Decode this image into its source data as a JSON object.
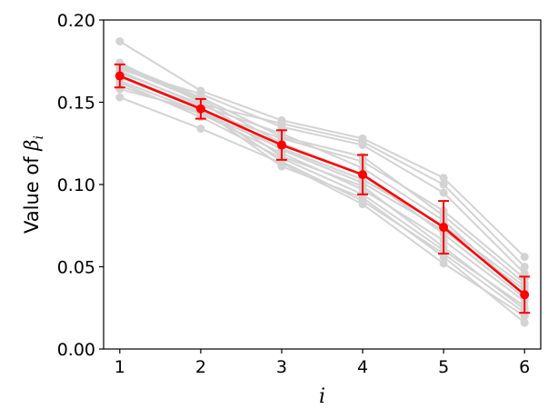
{
  "chart_data": {
    "type": "line",
    "xlabel": "i",
    "ylabel_prefix": "Value of ",
    "ylabel_symbol": "β",
    "ylabel_subscript": "i",
    "x": [
      1,
      2,
      3,
      4,
      5,
      6
    ],
    "x_ticks": [
      "1",
      "2",
      "3",
      "4",
      "5",
      "6"
    ],
    "y_ticks": [
      "0.00",
      "0.05",
      "0.10",
      "0.15",
      "0.20"
    ],
    "xlim": [
      0.8,
      6.2
    ],
    "ylim": [
      0.0,
      0.2
    ],
    "grid": false,
    "background_series_color": "#d3d3d3",
    "mean_series_color": "#ff0000",
    "background_series": [
      {
        "values": [
          0.187,
          0.157,
          0.139,
          0.128,
          0.104,
          0.056
        ]
      },
      {
        "values": [
          0.153,
          0.134,
          0.113,
          0.088,
          0.052,
          0.02
        ]
      },
      {
        "values": [
          0.174,
          0.15,
          0.121,
          0.101,
          0.072,
          0.036
        ]
      },
      {
        "values": [
          0.158,
          0.145,
          0.128,
          0.114,
          0.084,
          0.043
        ]
      },
      {
        "values": [
          0.17,
          0.155,
          0.135,
          0.124,
          0.095,
          0.046
        ]
      },
      {
        "values": [
          0.162,
          0.141,
          0.116,
          0.094,
          0.06,
          0.026
        ]
      },
      {
        "values": [
          0.169,
          0.148,
          0.131,
          0.11,
          0.078,
          0.033
        ]
      },
      {
        "values": [
          0.16,
          0.143,
          0.119,
          0.097,
          0.066,
          0.029
        ]
      },
      {
        "values": [
          0.172,
          0.152,
          0.125,
          0.106,
          0.07,
          0.031
        ]
      },
      {
        "values": [
          0.165,
          0.146,
          0.111,
          0.092,
          0.056,
          0.016
        ]
      },
      {
        "values": [
          0.168,
          0.149,
          0.137,
          0.126,
          0.1,
          0.05
        ]
      },
      {
        "values": [
          0.163,
          0.144,
          0.122,
          0.103,
          0.075,
          0.038
        ]
      },
      {
        "values": [
          0.171,
          0.151,
          0.117,
          0.099,
          0.062,
          0.024
        ]
      },
      {
        "values": [
          0.166,
          0.147,
          0.114,
          0.09,
          0.058,
          0.022
        ]
      },
      {
        "values": [
          0.173,
          0.153,
          0.129,
          0.117,
          0.081,
          0.04
        ]
      }
    ],
    "mean_series": {
      "values": [
        0.166,
        0.146,
        0.124,
        0.106,
        0.074,
        0.033
      ],
      "errors": [
        0.007,
        0.006,
        0.009,
        0.012,
        0.016,
        0.011
      ]
    }
  }
}
